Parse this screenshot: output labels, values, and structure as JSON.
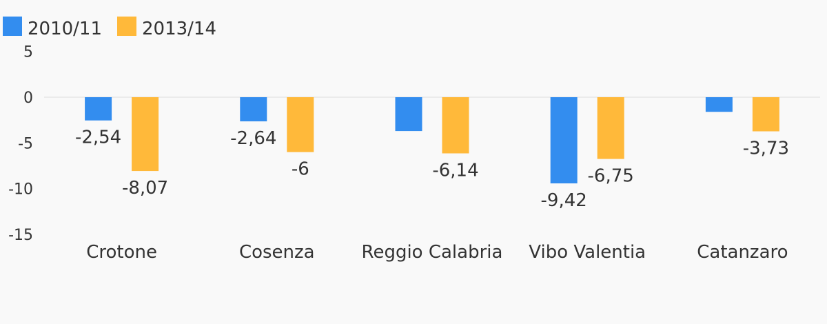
{
  "chart_data": {
    "type": "bar",
    "title": "",
    "xlabel": "",
    "ylabel": "",
    "categories": [
      "Crotone",
      "Cosenza",
      "Reggio Calabria",
      "Vibo Valentia",
      "Catanzaro"
    ],
    "series": [
      {
        "name": "2010/11",
        "color": "#338def",
        "values": [
          -2.54,
          -2.64,
          -3.7,
          -9.42,
          -1.6
        ],
        "labels": [
          "-2,54",
          "-2,64",
          "",
          "-9,42",
          ""
        ]
      },
      {
        "name": "2013/14",
        "color": "#ffb93a",
        "values": [
          -8.07,
          -6,
          -6.14,
          -6.75,
          -3.73
        ],
        "labels": [
          "-8,07",
          "-6",
          "-6,14",
          "-6,75",
          "-3,73"
        ]
      }
    ],
    "yticks": [
      {
        "value": 5,
        "label": "5"
      },
      {
        "value": 0,
        "label": "0"
      },
      {
        "value": -5,
        "label": "-5"
      },
      {
        "value": -10,
        "label": "-10"
      },
      {
        "value": -15,
        "label": "-15"
      }
    ],
    "ylim": [
      -15,
      5
    ],
    "legend_position": "top-left",
    "zero_line": true,
    "grid": false
  }
}
